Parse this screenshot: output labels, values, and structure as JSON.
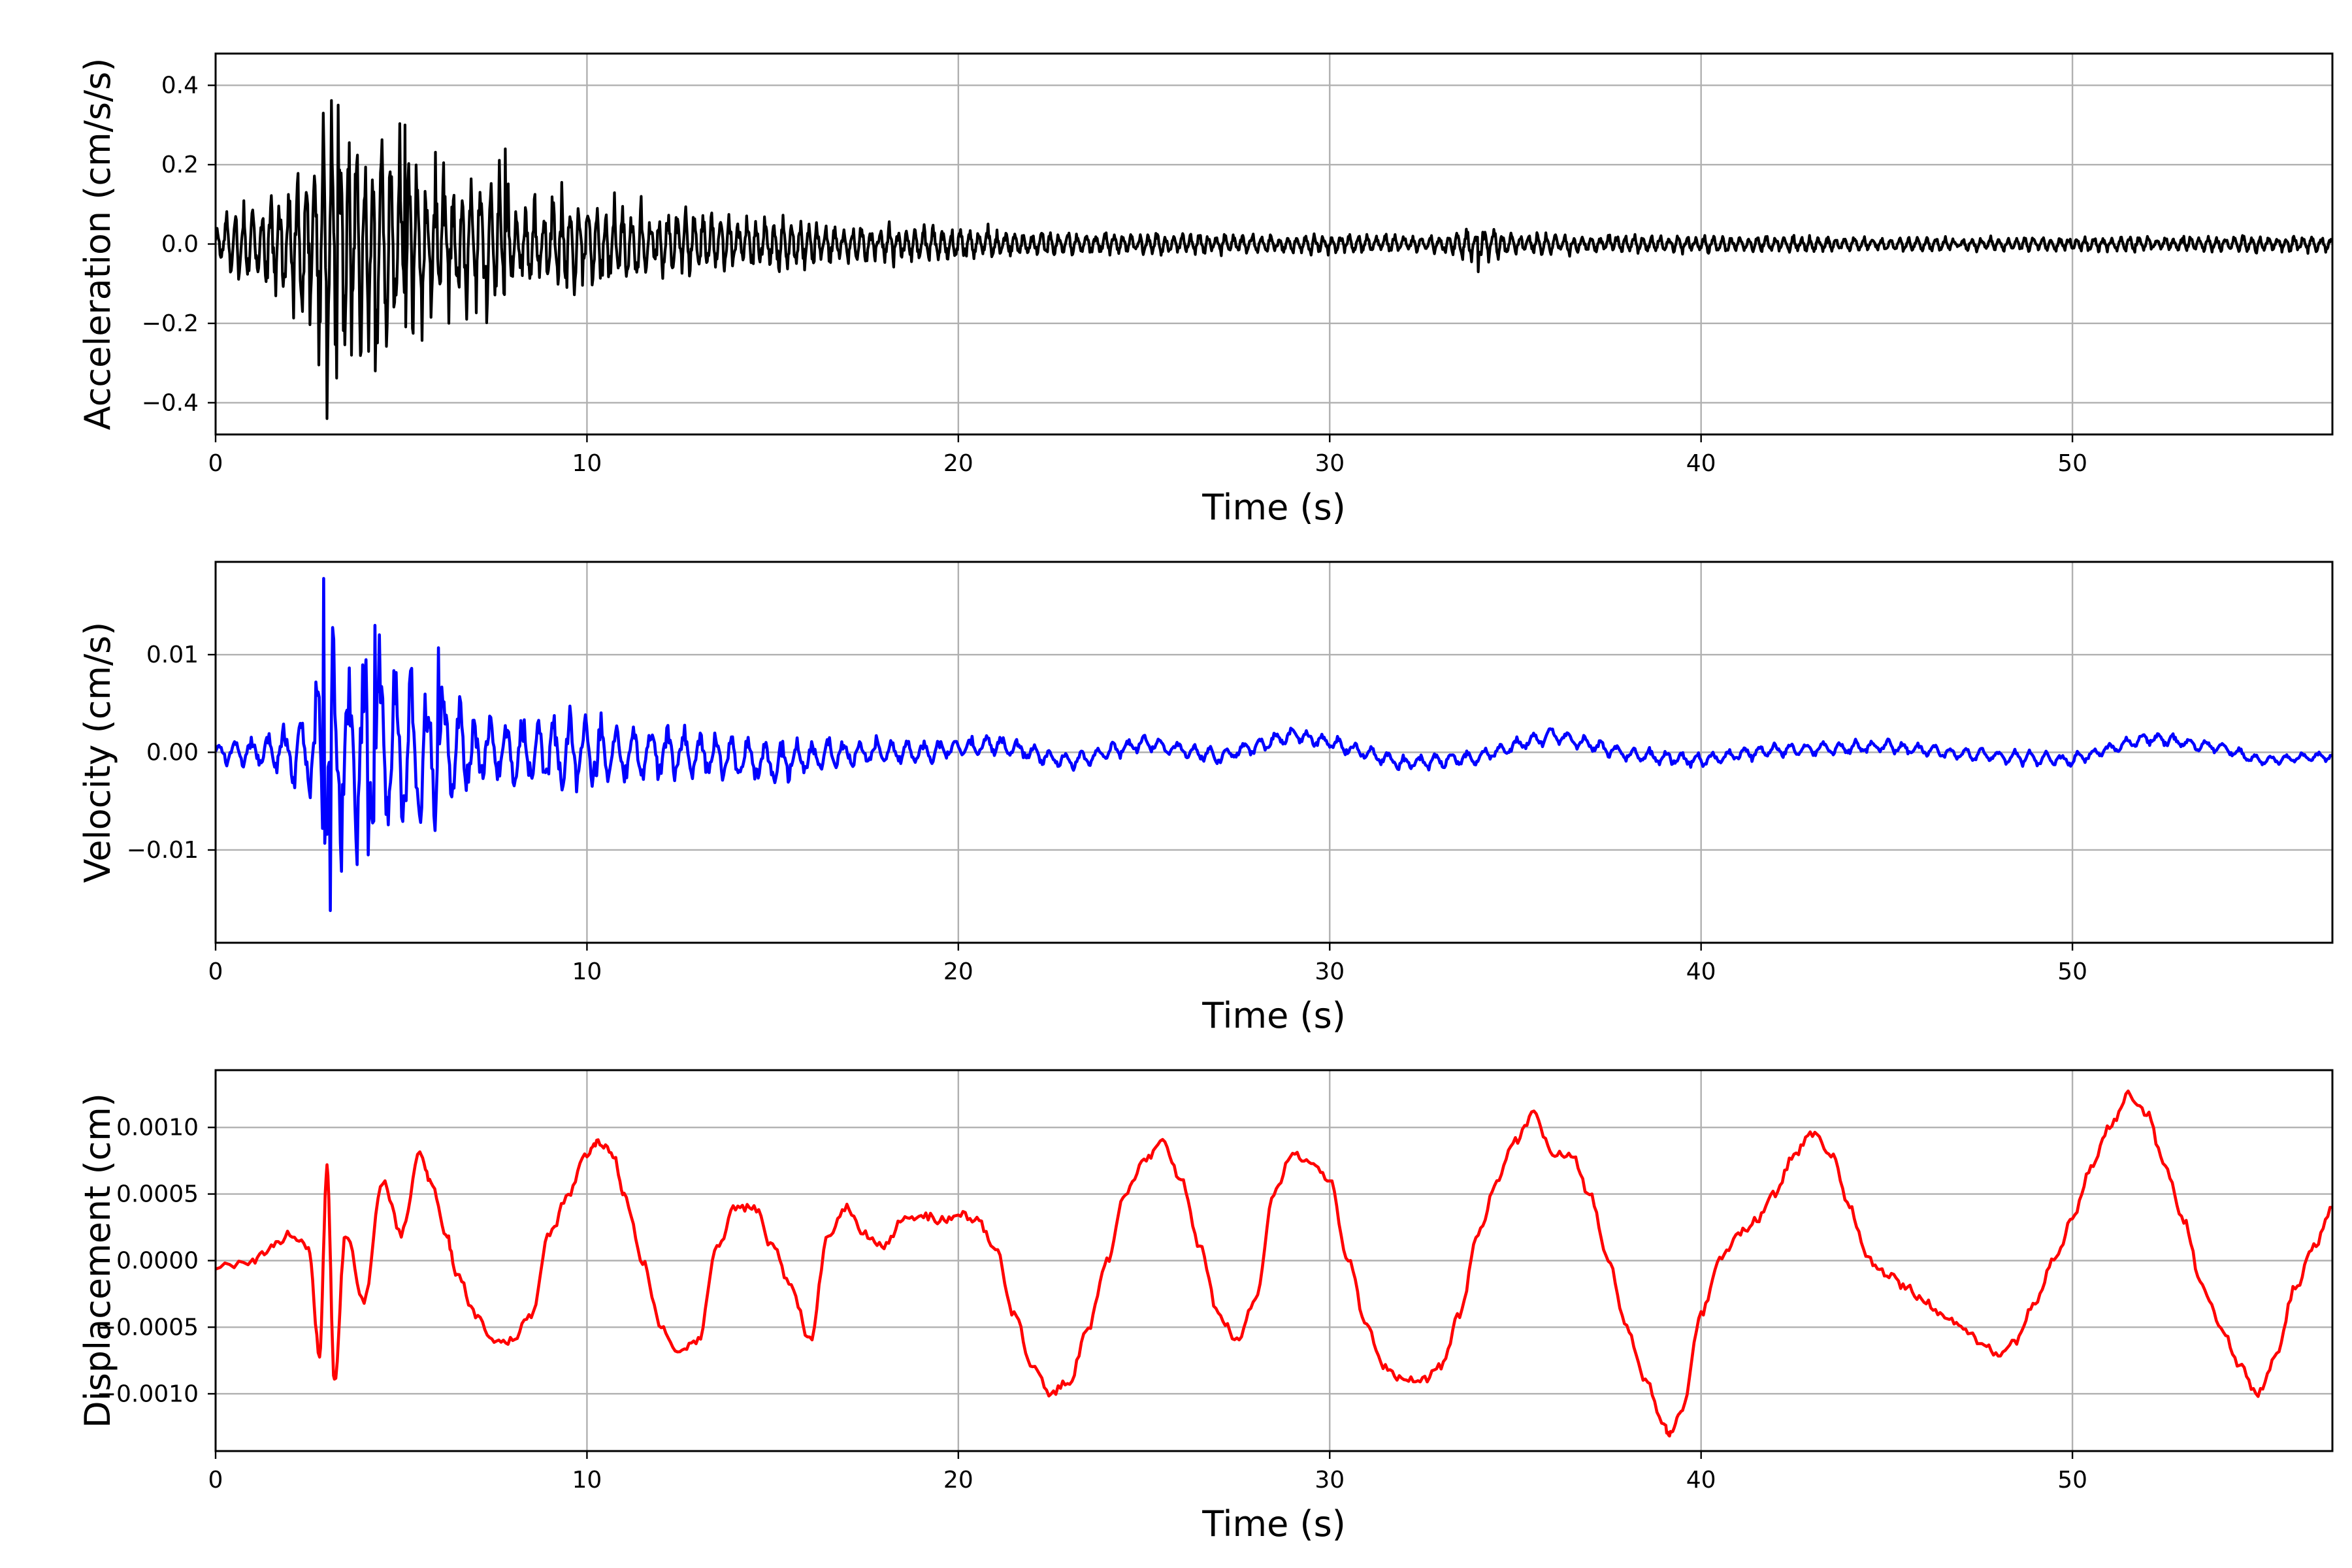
{
  "chart_data": [
    {
      "type": "line",
      "xlabel": "Time (s)",
      "ylabel": "Acceleration (cm/s/s)",
      "xlim": [
        0,
        57
      ],
      "ylim": [
        -0.48,
        0.48
      ],
      "xticks": [
        0,
        10,
        20,
        30,
        40,
        50
      ],
      "xtick_labels": [
        "0",
        "10",
        "20",
        "30",
        "40",
        "50"
      ],
      "yticks": [
        0.4,
        0.2,
        0.0,
        -0.2,
        -0.4
      ],
      "ytick_labels": [
        "0.4",
        "0.2",
        "0.0",
        "−0.2",
        "−0.4"
      ],
      "grid": true,
      "color": "#000000",
      "series": [
        {
          "envelope": {
            "t": [
              0,
              1,
              2,
              2.5,
              3,
              3.5,
              4,
              5,
              6,
              7,
              7.8,
              8,
              9,
              10,
              12,
              14,
              16,
              18,
              20,
              22,
              25,
              30,
              33,
              34,
              35,
              40,
              45,
              50,
              57
            ],
            "amp": [
              0.06,
              0.13,
              0.17,
              0.27,
              0.4,
              0.34,
              0.28,
              0.3,
              0.22,
              0.2,
              0.23,
              0.1,
              0.15,
              0.13,
              0.1,
              0.09,
              0.07,
              0.055,
              0.05,
              0.035,
              0.03,
              0.028,
              0.025,
              0.06,
              0.03,
              0.025,
              0.02,
              0.02,
              0.025
            ]
          },
          "peaks": [
            {
              "t": 3.0,
              "value": -0.44
            },
            {
              "t": 3.3,
              "value": 0.35
            },
            {
              "t": 2.9,
              "value": 0.33
            },
            {
              "t": 7.8,
              "value": 0.24
            },
            {
              "t": 5.1,
              "value": 0.3
            },
            {
              "t": 4.3,
              "value": -0.32
            },
            {
              "t": 34.0,
              "value": 0.07
            },
            {
              "t": 34.0,
              "value": -0.07
            }
          ]
        }
      ]
    },
    {
      "type": "line",
      "xlabel": "Time (s)",
      "ylabel": "Velocity (cm/s)",
      "xlim": [
        0,
        57
      ],
      "ylim": [
        -0.0195,
        0.0195
      ],
      "xticks": [
        0,
        10,
        20,
        30,
        40,
        50
      ],
      "xtick_labels": [
        "0",
        "10",
        "20",
        "30",
        "40",
        "50"
      ],
      "yticks": [
        0.01,
        0.0,
        -0.01
      ],
      "ytick_labels": [
        "0.01",
        "0.00",
        "−0.01"
      ],
      "grid": true,
      "color": "#0000ff",
      "series": [
        {
          "baseline": {
            "t": [
              0,
              5,
              8,
              10,
              12,
              15,
              17,
              19,
              21,
              23,
              25,
              27,
              29,
              30,
              32,
              34,
              36,
              38,
              40,
              42,
              45,
              47,
              50,
              52,
              54,
              55,
              57
            ],
            "v": [
              0,
              0,
              0,
              0,
              0,
              -0.001,
              0,
              0,
              0.0008,
              -0.001,
              0.001,
              -0.0005,
              0.0018,
              0.001,
              -0.0012,
              -0.0005,
              0.0018,
              -0.0002,
              -0.0008,
              0.0002,
              0.0006,
              -0.0002,
              -0.0008,
              0.0015,
              0.0005,
              -0.0008,
              -0.0003
            ]
          },
          "envelope": {
            "t": [
              0,
              1.5,
              2.5,
              3,
              3.5,
              4.5,
              6,
              7,
              8,
              9.5,
              10,
              12,
              14,
              16,
              18,
              20,
              25,
              30,
              40,
              50,
              57
            ],
            "amp": [
              0.0012,
              0.002,
              0.005,
              0.016,
              0.011,
              0.012,
              0.009,
              0.004,
              0.004,
              0.005,
              0.004,
              0.003,
              0.0025,
              0.002,
              0.0015,
              0.0012,
              0.0009,
              0.0009,
              0.0008,
              0.0008,
              0.0006
            ]
          },
          "peaks": [
            {
              "t": 2.9,
              "value": 0.0178
            },
            {
              "t": 3.1,
              "value": -0.0162
            },
            {
              "t": 4.3,
              "value": 0.013
            },
            {
              "t": 4.1,
              "value": -0.0105
            },
            {
              "t": 6.0,
              "value": 0.0107
            }
          ]
        }
      ]
    },
    {
      "type": "line",
      "xlabel": "Time (s)",
      "ylabel": "Displacement (cm)",
      "xlim": [
        0,
        57
      ],
      "ylim": [
        -0.00143,
        0.00143
      ],
      "xticks": [
        0,
        10,
        20,
        30,
        40,
        50
      ],
      "xtick_labels": [
        "0",
        "10",
        "20",
        "30",
        "40",
        "50"
      ],
      "yticks": [
        0.001,
        0.0005,
        0.0,
        -0.0005,
        -0.001
      ],
      "ytick_labels": [
        "0.0010",
        "0.0005",
        "0.0000",
        "−0.0005",
        "−0.0010"
      ],
      "grid": true,
      "color": "#ff0000",
      "series": [
        {
          "x": [
            0,
            1,
            1.5,
            2,
            2.5,
            2.8,
            3.0,
            3.2,
            3.5,
            4.0,
            4.5,
            5.0,
            5.5,
            5.8,
            6.2,
            6.5,
            7.0,
            7.5,
            8.0,
            8.5,
            9.0,
            9.5,
            10.0,
            10.3,
            10.7,
            11.0,
            11.5,
            12.0,
            12.5,
            13.0,
            13.5,
            14.0,
            14.5,
            15.0,
            15.5,
            16.0,
            16.5,
            17.0,
            17.5,
            18.0,
            18.5,
            19.0,
            19.5,
            20.0,
            20.5,
            21.0,
            21.5,
            22.0,
            22.5,
            23.0,
            23.5,
            24.0,
            24.5,
            25.0,
            25.5,
            26.0,
            26.5,
            27.0,
            27.5,
            28.0,
            28.5,
            29.0,
            29.5,
            30.0,
            30.5,
            31.0,
            31.5,
            32.0,
            32.5,
            33.0,
            33.5,
            34.0,
            34.5,
            35.0,
            35.5,
            36.0,
            36.5,
            37.0,
            37.5,
            38.0,
            38.5,
            39.0,
            39.2,
            39.5,
            40.0,
            40.5,
            41.0,
            41.5,
            42.0,
            42.5,
            43.0,
            43.5,
            44.0,
            44.5,
            45.0,
            45.5,
            46.0,
            46.5,
            47.0,
            47.5,
            48.0,
            48.5,
            49.0,
            49.5,
            50.0,
            50.5,
            51.0,
            51.5,
            52.0,
            52.5,
            53.0,
            53.5,
            54.0,
            54.5,
            55.0,
            55.5,
            56.0,
            56.5,
            57.0
          ],
          "values": [
            -5e-05,
            0.0,
            0.0001,
            0.0002,
            0.0001,
            -0.0007,
            0.0007,
            -0.0009,
            0.0002,
            -0.0003,
            0.0006,
            0.0002,
            0.0008,
            0.0006,
            0.0002,
            -0.0001,
            -0.0004,
            -0.0006,
            -0.0006,
            -0.0004,
            0.0002,
            0.0005,
            0.0008,
            0.0009,
            0.0008,
            0.0005,
            0.0,
            -0.0005,
            -0.0007,
            -0.0006,
            0.0001,
            0.0004,
            0.0004,
            0.0001,
            -0.0002,
            -0.0006,
            0.0002,
            0.0004,
            0.0002,
            0.0001,
            0.0003,
            0.00035,
            0.0003,
            0.00035,
            0.0003,
            0.0001,
            -0.0004,
            -0.0008,
            -0.001,
            -0.0009,
            -0.0005,
            0.0,
            0.0005,
            0.00075,
            0.0009,
            0.0006,
            0.0001,
            -0.0004,
            -0.0006,
            -0.0003,
            0.0005,
            0.0008,
            0.00075,
            0.0006,
            0.0,
            -0.0005,
            -0.0008,
            -0.0009,
            -0.0009,
            -0.0008,
            -0.0004,
            0.0002,
            0.0006,
            0.0009,
            0.0011,
            0.0008,
            0.0008,
            0.0005,
            0.0,
            -0.0005,
            -0.0009,
            -0.00125,
            -0.0013,
            -0.0011,
            -0.0004,
            0.0,
            0.0002,
            0.0003,
            0.0005,
            0.0008,
            0.00095,
            0.0008,
            0.0004,
            0.0,
            -0.0001,
            -0.0002,
            -0.0003,
            -0.0004,
            -0.0005,
            -0.0006,
            -0.0007,
            -0.0006,
            -0.0003,
            0.0,
            0.0003,
            0.0007,
            0.001,
            0.00125,
            0.0011,
            0.0007,
            0.0003,
            -0.0002,
            -0.0005,
            -0.0008,
            -0.001,
            -0.0007,
            -0.0002,
            0.0001,
            0.0004
          ]
        }
      ]
    }
  ]
}
